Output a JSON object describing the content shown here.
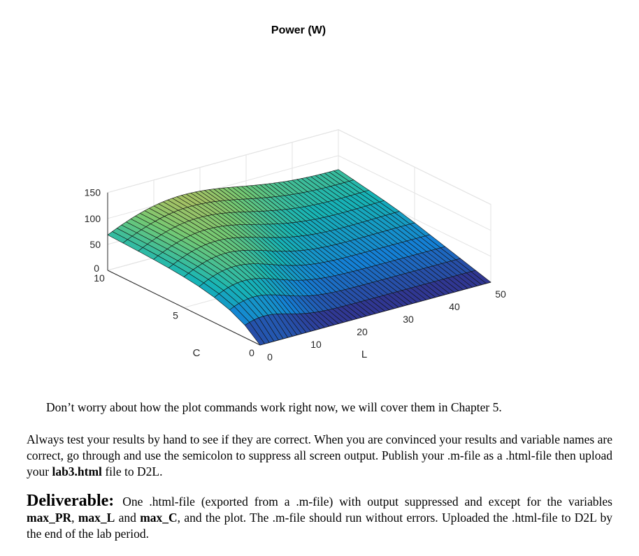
{
  "chart_data": {
    "type": "surface",
    "title": "Power (W)",
    "xlabel": "L",
    "ylabel": "C",
    "zlabel": "",
    "x_range": [
      0,
      50
    ],
    "y_range": [
      0,
      10
    ],
    "z_range": [
      0,
      150
    ],
    "x_ticks": [
      "0",
      "10",
      "20",
      "30",
      "40",
      "50"
    ],
    "y_ticks": [
      "0",
      "5",
      "10"
    ],
    "z_ticks": [
      "0",
      "50",
      "100",
      "150"
    ],
    "colormap": "parula",
    "grid": true
  },
  "document": {
    "intro": "Don’t worry about how the plot commands work right now, we will cover them in Chapter 5.",
    "para1_a": "Always test your results by hand to see if they are correct. When you are convinced your results and variable names are correct, go through and use the semicolon to suppress all screen output. Publish your .m-file as a .html-file then upload your ",
    "para1_file": "lab3.html",
    "para1_b": " file to D2L.",
    "deliverable_heading": "Deliverable:",
    "deliv_a": "One .html-file (exported from a .m-file) with output suppressed and except for the variables ",
    "var1": "max_PR",
    "deliv_sep1": ", ",
    "var2": "max_L",
    "deliv_and": " and ",
    "var3": "max_C",
    "deliv_b": ", and the plot. The .m-file should run without errors. Uploaded the .html-file to D2L by the end of the lab period."
  }
}
